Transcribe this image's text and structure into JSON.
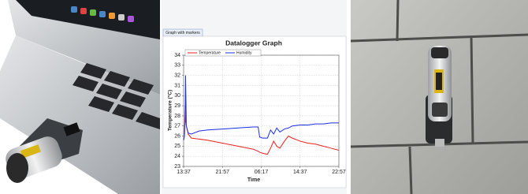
{
  "tab": "Graph with markers",
  "chart_data": {
    "type": "line",
    "title": "Datalogger Graph",
    "x_label": "Time",
    "y_label": "Temperature (°C)",
    "x": [
      0,
      10,
      20,
      25,
      35,
      60,
      100,
      200,
      300,
      500,
      700,
      900,
      960,
      980,
      1020,
      1080,
      1120,
      1160,
      1200,
      1240,
      1300,
      1350,
      1400,
      1500,
      1600,
      1700,
      1800,
      1900,
      2000
    ],
    "series": [
      {
        "name": "Temperature",
        "color": "#e8201c",
        "values": [
          25.6,
          26,
          29,
          27.5,
          27,
          26.2,
          25.8,
          25.7,
          25.6,
          25.3,
          25,
          24.7,
          24.5,
          24.4,
          24.3,
          24.2,
          24.8,
          25.5,
          25,
          24.8,
          25.5,
          26,
          25.8,
          25.5,
          25.3,
          25.2,
          25,
          24.8,
          24.6
        ]
      },
      {
        "name": "Humidity",
        "color": "#1c2ee0",
        "values": [
          25.6,
          26,
          28,
          32,
          27,
          26.3,
          26.2,
          26.5,
          26.6,
          26.7,
          26.8,
          26.9,
          26.9,
          25.9,
          25.8,
          25.8,
          26.6,
          26.2,
          26.8,
          26.4,
          26.7,
          26.8,
          27,
          27.1,
          27.1,
          27.2,
          27.2,
          27.3,
          27.3
        ]
      }
    ],
    "xlim": [
      0,
      2000
    ],
    "xticks": [
      {
        "value": 0,
        "label": "13:37"
      },
      {
        "value": 500,
        "label": "21:57"
      },
      {
        "value": 1000,
        "label": "06:17"
      },
      {
        "value": 1500,
        "label": "14:37"
      },
      {
        "value": 2000,
        "label": "22:57"
      }
    ],
    "ylim": [
      23,
      34
    ],
    "yticks": [
      23,
      24,
      25,
      26,
      27,
      28,
      29,
      30,
      31,
      32,
      33,
      34
    ],
    "grid": true
  }
}
